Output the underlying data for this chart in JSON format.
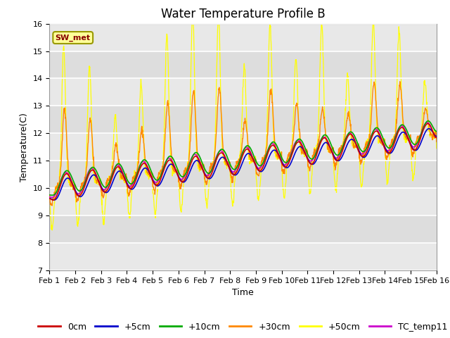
{
  "title": "Water Temperature Profile B",
  "xlabel": "Time",
  "ylabel": "Temperature(C)",
  "ylim": [
    7.0,
    16.0
  ],
  "yticks": [
    7.0,
    8.0,
    9.0,
    10.0,
    11.0,
    12.0,
    13.0,
    14.0,
    15.0,
    16.0
  ],
  "xtick_labels": [
    "Feb 1",
    "Feb 2",
    "Feb 3",
    "Feb 4",
    "Feb 5",
    "Feb 6",
    "Feb 7",
    "Feb 8",
    "Feb 9",
    "Feb 10",
    "Feb 11",
    "Feb 12",
    "Feb 13",
    "Feb 14",
    "Feb 15",
    "Feb 16"
  ],
  "series_colors": {
    "0cm": "#cc0000",
    "+5cm": "#0000cc",
    "+10cm": "#00aa00",
    "+30cm": "#ff8800",
    "+50cm": "#ffff00",
    "TC_temp11": "#cc00cc"
  },
  "sw_met_box_color": "#ffff99",
  "sw_met_text_color": "#880000",
  "sw_met_border_color": "#999900",
  "bg_color": "#dddddd",
  "bg_alt_color": "#e8e8e8",
  "fig_bg_color": "#ffffff",
  "grid_color": "#ffffff",
  "title_fontsize": 12,
  "axis_label_fontsize": 9,
  "tick_fontsize": 8,
  "legend_fontsize": 9,
  "n_points": 1440,
  "time_days": 15
}
